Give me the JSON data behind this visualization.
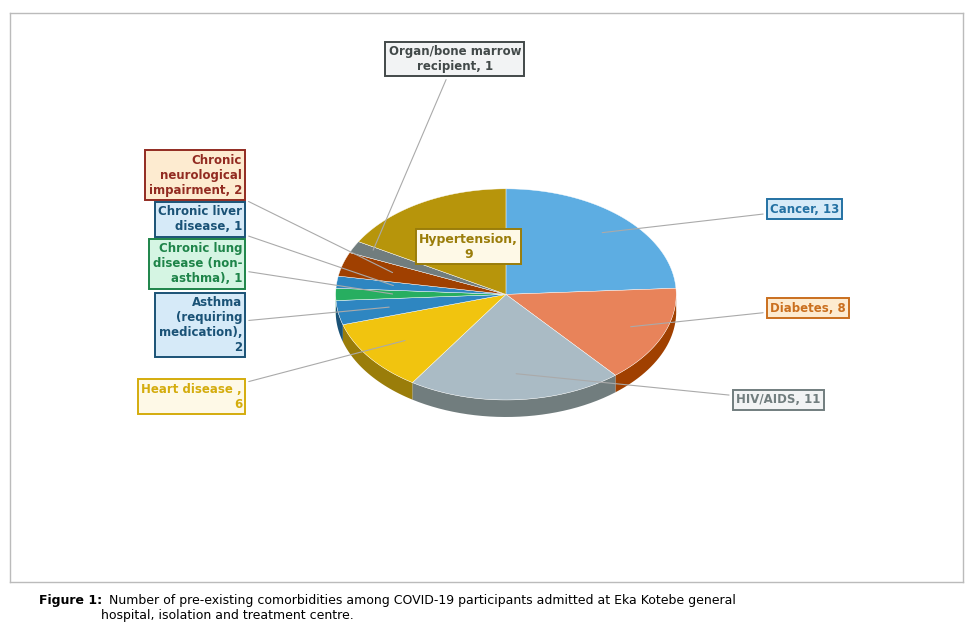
{
  "slices": [
    {
      "label": "Cancer, 13",
      "value": 13,
      "color": "#5DADE2",
      "dark": "#2874A6",
      "box_face": "#D6EAF8",
      "box_edge": "#2471A3",
      "text_color": "#2471A3"
    },
    {
      "label": "Diabetes, 8",
      "value": 8,
      "color": "#E8835A",
      "dark": "#A04000",
      "box_face": "#FDEBD0",
      "box_edge": "#CA6F1E",
      "text_color": "#CA6F1E"
    },
    {
      "label": "HIV/AIDS, 11",
      "value": 11,
      "color": "#AABBC5",
      "dark": "#717D7E",
      "box_face": "#F2F3F4",
      "box_edge": "#717D7E",
      "text_color": "#717D7E"
    },
    {
      "label": "Heart disease ,\n6",
      "value": 6,
      "color": "#F1C40F",
      "dark": "#9A7D0A",
      "box_face": "#FEF9E7",
      "box_edge": "#D4AC0D",
      "text_color": "#D4AC0D"
    },
    {
      "label": "Asthma\n(requiring\nmedication),\n2",
      "value": 2,
      "color": "#2E86C1",
      "dark": "#1A5276",
      "box_face": "#D6EAF8",
      "box_edge": "#1A5276",
      "text_color": "#1A5276"
    },
    {
      "label": "Chronic lung\ndisease (non-\nasthma), 1",
      "value": 1,
      "color": "#27AE60",
      "dark": "#1E8449",
      "box_face": "#D5F5E3",
      "box_edge": "#1E8449",
      "text_color": "#1E8449"
    },
    {
      "label": "Chronic liver\ndisease, 1",
      "value": 1,
      "color": "#2E86C1",
      "dark": "#1A5276",
      "box_face": "#D6EAF8",
      "box_edge": "#1A5276",
      "text_color": "#1A5276"
    },
    {
      "label": "Chronic\nneurological\nimpairment, 2",
      "value": 2,
      "color": "#A04000",
      "dark": "#6E2F1A",
      "box_face": "#FDEBD0",
      "box_edge": "#922B21",
      "text_color": "#922B21"
    },
    {
      "label": "Organ/bone marrow\nrecipient, 1",
      "value": 1,
      "color": "#717D7E",
      "dark": "#424949",
      "box_face": "#F2F3F4",
      "box_edge": "#424949",
      "text_color": "#424949"
    },
    {
      "label": "Hypertension,\n9",
      "value": 9,
      "color": "#B7950B",
      "dark": "#7D6608",
      "box_face": "#FEF9E7",
      "box_edge": "#9A7D0A",
      "text_color": "#9A7D0A"
    }
  ],
  "startangle": 90,
  "bg_color": "#ffffff",
  "caption_bold": "Figure 1:",
  "caption_rest": "  Number of pre-existing comorbidities among COVID-19 participants admitted at Eka Kotebe general\nhospital, isolation and treatment centre."
}
